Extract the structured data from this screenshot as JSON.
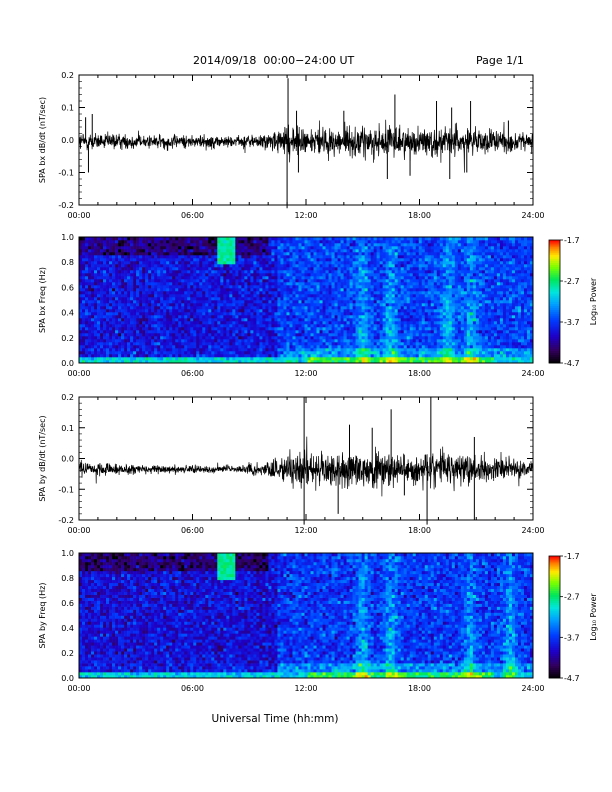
{
  "header": {
    "title": "2014/09/18  00:00−24:00 UT",
    "page": "Page 1/1"
  },
  "xlabel": "Universal Time (hh:mm)",
  "chart_data": [
    {
      "type": "line",
      "ylabel": "SPA bx dB/dt (nT/sec)",
      "xlim": [
        0,
        24
      ],
      "ylim": [
        -0.2,
        0.2
      ],
      "xticks": [
        "00:00",
        "06:00",
        "12:00",
        "18:00",
        "24:00"
      ],
      "yticks": [
        "-0.2",
        "-0.1",
        "0.0",
        "0.1",
        "0.2"
      ],
      "yticks_values": [
        -0.2,
        -0.1,
        0.0,
        0.1,
        0.2
      ],
      "envelope": {
        "x": [
          0,
          1,
          2,
          3,
          4,
          5,
          6,
          7,
          8,
          9,
          10,
          11,
          12,
          13,
          14,
          15,
          16,
          17,
          18,
          19,
          20,
          21,
          22,
          23,
          24
        ],
        "amp": [
          0.04,
          0.035,
          0.03,
          0.03,
          0.03,
          0.028,
          0.028,
          0.025,
          0.025,
          0.028,
          0.035,
          0.06,
          0.06,
          0.055,
          0.06,
          0.065,
          0.065,
          0.06,
          0.06,
          0.06,
          0.06,
          0.055,
          0.05,
          0.04,
          0.035
        ],
        "offset": -0.005
      },
      "spikes": [
        {
          "x": 0.35,
          "y": 0.07
        },
        {
          "x": 0.7,
          "y": 0.08
        },
        {
          "x": 0.5,
          "y": -0.1
        },
        {
          "x": 11.05,
          "y": 0.19
        },
        {
          "x": 11.0,
          "y": -0.21
        },
        {
          "x": 11.5,
          "y": 0.09
        },
        {
          "x": 11.6,
          "y": -0.1
        },
        {
          "x": 14.0,
          "y": 0.09
        },
        {
          "x": 16.7,
          "y": 0.14
        },
        {
          "x": 16.3,
          "y": -0.12
        },
        {
          "x": 17.5,
          "y": -0.11
        },
        {
          "x": 18.9,
          "y": 0.12
        },
        {
          "x": 19.7,
          "y": 0.1
        },
        {
          "x": 19.6,
          "y": -0.12
        },
        {
          "x": 20.7,
          "y": 0.12
        },
        {
          "x": 20.5,
          "y": -0.1
        },
        {
          "x": 22.7,
          "y": 0.06
        }
      ]
    },
    {
      "type": "heatmap",
      "ylabel": "SPA bx Freq (Hz)",
      "xlim": [
        0,
        24
      ],
      "ylim": [
        0,
        1
      ],
      "xticks": [
        "00:00",
        "06:00",
        "12:00",
        "18:00",
        "24:00"
      ],
      "yticks": [
        "0.0",
        "0.2",
        "0.4",
        "0.6",
        "0.8",
        "1.0"
      ],
      "yticks_values": [
        0,
        0.2,
        0.4,
        0.6,
        0.8,
        1.0
      ],
      "colorbar": {
        "label": "Log₁₀ Power",
        "range": [
          -4.7,
          -1.7
        ],
        "ticks": [
          "-1.7",
          "-2.7",
          "-3.7",
          "-4.7"
        ],
        "tick_values": [
          -1.7,
          -2.7,
          -3.7,
          -4.7
        ]
      },
      "features": {
        "background_level": -3.9,
        "low_freq_band_level": -3.0,
        "green_patch": {
          "t_start": 7.3,
          "t_end": 8.2,
          "f_start": 0.78,
          "f_end": 1.0,
          "level": -2.8
        },
        "enhanced_activity": {
          "t_start": 10.5,
          "t_end": 24,
          "level": -3.4
        },
        "bursts": [
          15,
          16.5,
          19.5,
          20.7
        ]
      }
    },
    {
      "type": "line",
      "ylabel": "SPA by dB/dt (nT/sec)",
      "xlim": [
        0,
        24
      ],
      "ylim": [
        -0.2,
        0.2
      ],
      "xticks": [
        "00:00",
        "06:00",
        "12:00",
        "18:00",
        "24:00"
      ],
      "yticks": [
        "-0.2",
        "-0.1",
        "0.0",
        "0.1",
        "0.2"
      ],
      "yticks_values": [
        -0.2,
        -0.1,
        0.0,
        0.1,
        0.2
      ],
      "envelope": {
        "x": [
          0,
          1,
          2,
          3,
          4,
          5,
          6,
          7,
          8,
          9,
          10,
          11,
          12,
          13,
          14,
          15,
          16,
          17,
          18,
          19,
          20,
          21,
          22,
          23,
          24
        ],
        "amp": [
          0.03,
          0.03,
          0.025,
          0.02,
          0.018,
          0.018,
          0.015,
          0.015,
          0.015,
          0.02,
          0.03,
          0.07,
          0.08,
          0.075,
          0.075,
          0.07,
          0.07,
          0.07,
          0.07,
          0.08,
          0.07,
          0.06,
          0.05,
          0.035,
          0.03
        ],
        "offset": -0.035
      },
      "spikes": [
        {
          "x": 11.9,
          "y": 0.2
        },
        {
          "x": 11.9,
          "y": -0.22
        },
        {
          "x": 13.7,
          "y": -0.18
        },
        {
          "x": 14.3,
          "y": 0.11
        },
        {
          "x": 15.5,
          "y": 0.1
        },
        {
          "x": 16.5,
          "y": 0.16
        },
        {
          "x": 18.6,
          "y": 0.2
        },
        {
          "x": 18.4,
          "y": -0.22
        },
        {
          "x": 20.9,
          "y": 0.07
        },
        {
          "x": 20.9,
          "y": -0.2
        },
        {
          "x": 17.2,
          "y": -0.12
        }
      ]
    },
    {
      "type": "heatmap",
      "ylabel": "SPA by Freq (Hz)",
      "xlim": [
        0,
        24
      ],
      "ylim": [
        0,
        1
      ],
      "xticks": [
        "00:00",
        "06:00",
        "12:00",
        "18:00",
        "24:00"
      ],
      "yticks": [
        "0.0",
        "0.2",
        "0.4",
        "0.6",
        "0.8",
        "1.0"
      ],
      "yticks_values": [
        0,
        0.2,
        0.4,
        0.6,
        0.8,
        1.0
      ],
      "colorbar": {
        "label": "Log₁₀ Power",
        "range": [
          -4.7,
          -1.7
        ],
        "ticks": [
          "-1.7",
          "-2.7",
          "-3.7",
          "-4.7"
        ],
        "tick_values": [
          -1.7,
          -2.7,
          -3.7,
          -4.7
        ]
      },
      "features": {
        "background_level": -3.95,
        "low_freq_band_level": -3.05,
        "green_patch": {
          "t_start": 7.3,
          "t_end": 8.2,
          "f_start": 0.78,
          "f_end": 1.0,
          "level": -2.8
        },
        "enhanced_activity": {
          "t_start": 10.5,
          "t_end": 24,
          "level": -3.45
        },
        "bursts": [
          15,
          16.5,
          20.7,
          22.8
        ]
      }
    }
  ]
}
